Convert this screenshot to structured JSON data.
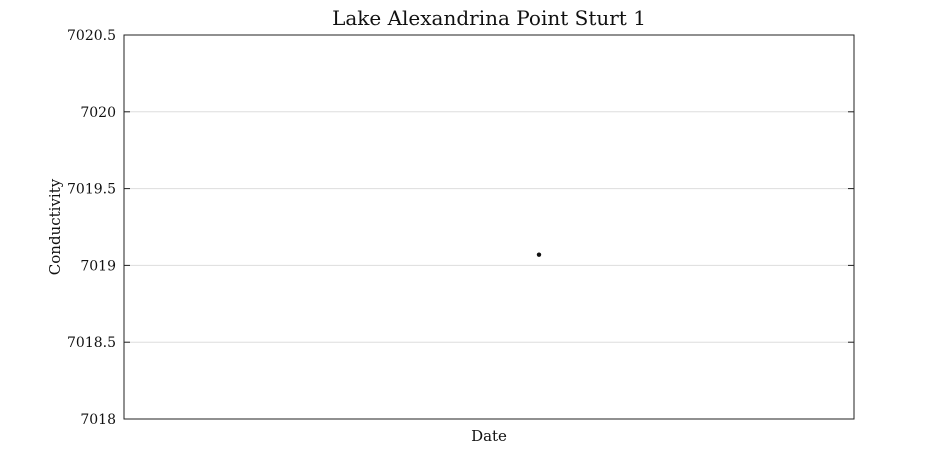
{
  "chart_data": {
    "type": "scatter",
    "title": "Lake Alexandrina Point Sturt 1",
    "xlabel": "Date",
    "ylabel": "Conductivity",
    "ylim": [
      7018,
      7020.5
    ],
    "yticks": [
      7018,
      7018.5,
      7019,
      7019.5,
      7020,
      7020.5
    ],
    "ytick_labels": [
      "7018",
      "7018.5",
      "7019",
      "7019.5",
      "7020",
      "7020.5"
    ],
    "grid": true,
    "series": [
      {
        "values": [
          7019.07
        ]
      }
    ],
    "colors": {
      "point": "#111111",
      "grid": "#dddddd",
      "axes": "#222222"
    }
  }
}
